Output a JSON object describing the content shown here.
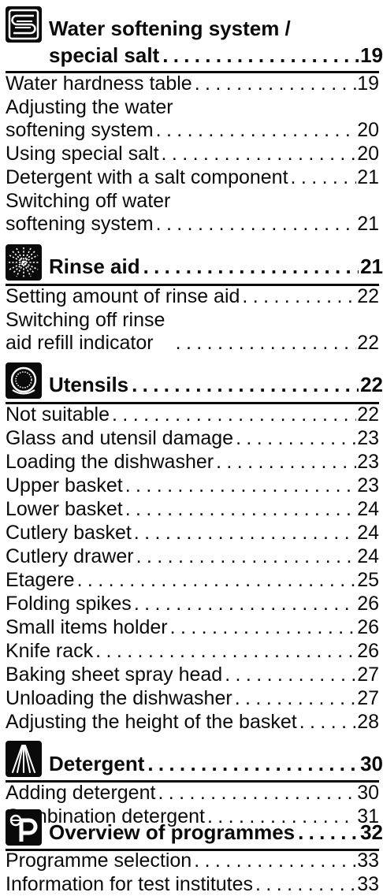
{
  "dot_fill": "......................................................................................",
  "sections": [
    {
      "icon": "water-softening-icon",
      "title_line1": "Water softening system /",
      "title_line2": "special salt",
      "page": "19",
      "entries": [
        {
          "lines": [
            "Water hardness table"
          ],
          "page": "19"
        },
        {
          "lines": [
            "Adjusting the water",
            "softening system"
          ],
          "page": "20"
        },
        {
          "lines": [
            "Using special salt"
          ],
          "page": "20"
        },
        {
          "lines": [
            "Detergent with a salt component"
          ],
          "page": "21"
        },
        {
          "lines": [
            "Switching off water",
            "softening system"
          ],
          "page": "21"
        }
      ]
    },
    {
      "icon": "rinse-aid-icon",
      "title": "Rinse aid",
      "page": "21",
      "entries": [
        {
          "lines": [
            "Setting amount of rinse aid"
          ],
          "page": "22"
        },
        {
          "lines": [
            "Switching off rinse",
            "aid refill indicator"
          ],
          "page": "22"
        }
      ]
    },
    {
      "icon": "utensils-icon",
      "title": "Utensils",
      "page": "22",
      "entries": [
        {
          "lines": [
            "Not suitable"
          ],
          "page": "22"
        },
        {
          "lines": [
            "Glass and utensil damage"
          ],
          "page": "23"
        },
        {
          "lines": [
            "Loading the dishwasher"
          ],
          "page": "23"
        },
        {
          "lines": [
            "Upper basket"
          ],
          "page": "23"
        },
        {
          "lines": [
            "Lower basket"
          ],
          "page": "24"
        },
        {
          "lines": [
            "Cutlery basket"
          ],
          "page": "24"
        },
        {
          "lines": [
            "Cutlery drawer"
          ],
          "page": "24"
        },
        {
          "lines": [
            "Etagere"
          ],
          "page": "25"
        },
        {
          "lines": [
            "Folding spikes"
          ],
          "page": "26"
        },
        {
          "lines": [
            "Small items holder"
          ],
          "page": "26"
        },
        {
          "lines": [
            "Knife rack"
          ],
          "page": "26"
        },
        {
          "lines": [
            "Baking sheet spray head"
          ],
          "page": "27"
        },
        {
          "lines": [
            "Unloading the dishwasher"
          ],
          "page": "27"
        },
        {
          "lines": [
            "Adjusting the height of the basket"
          ],
          "page": "28"
        }
      ]
    },
    {
      "icon": "detergent-icon",
      "title": "Detergent",
      "page": "30",
      "entries": [
        {
          "lines": [
            "Adding detergent"
          ],
          "page": "30"
        },
        {
          "lines": [
            "Combination detergent"
          ],
          "page": "31"
        }
      ]
    },
    {
      "icon": "programmes-icon",
      "title": "Overview of programmes",
      "page": "32",
      "entries": [
        {
          "lines": [
            "Programme selection"
          ],
          "page": "33"
        },
        {
          "lines": [
            "Information for test institutes"
          ],
          "page": "33"
        }
      ]
    }
  ]
}
